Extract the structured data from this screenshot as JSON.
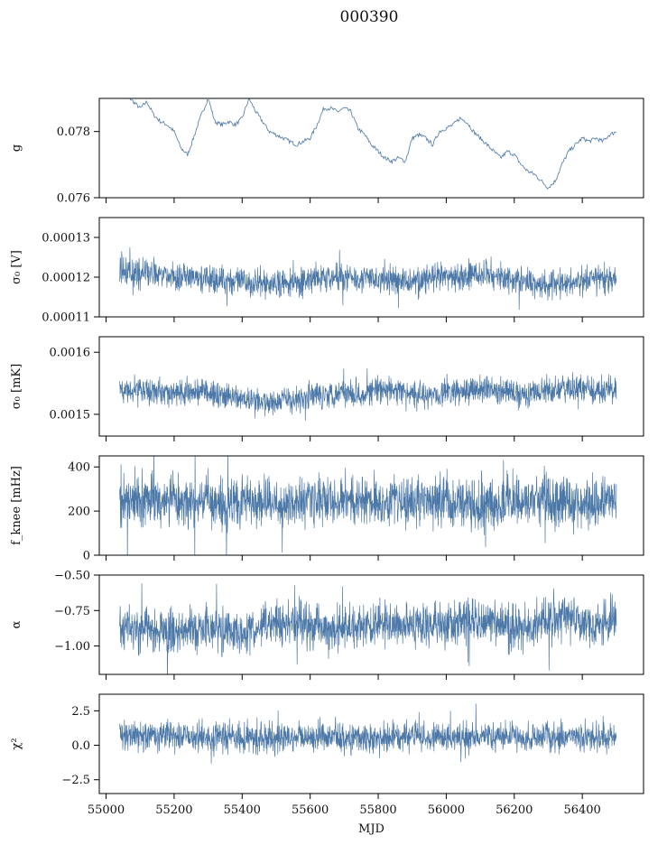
{
  "figure": {
    "title": "000390",
    "series_color": "#4c78a8"
  },
  "chart_data": [
    {
      "type": "line",
      "panel": "g",
      "ylabel": "g",
      "ylim": [
        0.076,
        0.079
      ],
      "yticks": [
        0.076,
        0.078
      ],
      "ytick_labels": [
        "0.076",
        "0.078"
      ],
      "x": [
        55040,
        55060,
        55080,
        55100,
        55120,
        55140,
        55160,
        55180,
        55200,
        55220,
        55240,
        55260,
        55280,
        55300,
        55320,
        55340,
        55360,
        55380,
        55400,
        55420,
        55440,
        55460,
        55480,
        55500,
        55520,
        55540,
        55560,
        55580,
        55600,
        55620,
        55640,
        55660,
        55680,
        55700,
        55720,
        55740,
        55760,
        55780,
        55800,
        55820,
        55840,
        55860,
        55880,
        55900,
        55920,
        55940,
        55960,
        55980,
        56000,
        56020,
        56040,
        56060,
        56080,
        56100,
        56120,
        56140,
        56160,
        56180,
        56200,
        56220,
        56240,
        56260,
        56280,
        56300,
        56320,
        56340,
        56360,
        56380,
        56400,
        56420,
        56440,
        56460,
        56480,
        56500
      ],
      "values": [
        0.0791,
        0.0791,
        0.0789,
        0.0787,
        0.0789,
        0.0785,
        0.0783,
        0.0782,
        0.078,
        0.0775,
        0.0773,
        0.0779,
        0.0785,
        0.079,
        0.0783,
        0.0782,
        0.0783,
        0.0782,
        0.0784,
        0.079,
        0.0786,
        0.0783,
        0.078,
        0.0779,
        0.0778,
        0.0777,
        0.0776,
        0.0777,
        0.0778,
        0.0782,
        0.0787,
        0.0787,
        0.0786,
        0.0787,
        0.0786,
        0.0781,
        0.0779,
        0.0776,
        0.0774,
        0.0772,
        0.0771,
        0.0772,
        0.0771,
        0.0778,
        0.0779,
        0.0778,
        0.0776,
        0.078,
        0.0781,
        0.0782,
        0.0784,
        0.0783,
        0.078,
        0.0778,
        0.0776,
        0.0774,
        0.0772,
        0.0774,
        0.0773,
        0.077,
        0.0768,
        0.0767,
        0.0765,
        0.0763,
        0.0765,
        0.077,
        0.0774,
        0.0776,
        0.0778,
        0.0777,
        0.0778,
        0.0777,
        0.0779,
        0.078
      ]
    },
    {
      "type": "line",
      "panel": "sigma0_v",
      "ylabel": "σ₀ [V]",
      "ylim": [
        0.00011,
        0.000135
      ],
      "yticks": [
        0.00011,
        0.00012,
        0.00013
      ],
      "ytick_labels": [
        "0.00011",
        "0.00012",
        "0.00013"
      ],
      "x": [
        55040,
        55100,
        55160,
        55220,
        55280,
        55340,
        55400,
        55460,
        55520,
        55580,
        55640,
        55700,
        55760,
        55820,
        55880,
        55940,
        56000,
        56060,
        56120,
        56180,
        56240,
        56300,
        56360,
        56420,
        56480,
        56500
      ],
      "values": [
        0.0001215,
        0.0001212,
        0.0001205,
        0.0001198,
        0.0001195,
        0.0001192,
        0.0001188,
        0.0001183,
        0.0001182,
        0.000119,
        0.0001198,
        0.0001202,
        0.0001198,
        0.0001192,
        0.000119,
        0.0001195,
        0.00012,
        0.0001203,
        0.0001205,
        0.00012,
        0.0001188,
        0.0001182,
        0.0001185,
        0.0001192,
        0.0001195,
        0.0001196
      ],
      "band": 4.5e-06
    },
    {
      "type": "line",
      "panel": "sigma0_mk",
      "ylabel": "σ₀ [mK]",
      "ylim": [
        0.001465,
        0.001625
      ],
      "yticks": [
        0.0015,
        0.0016
      ],
      "ytick_labels": [
        "0.0015",
        "0.0016"
      ],
      "x": [
        55040,
        55100,
        55160,
        55220,
        55280,
        55340,
        55400,
        55460,
        55520,
        55580,
        55640,
        55700,
        55760,
        55820,
        55880,
        55940,
        56000,
        56060,
        56120,
        56180,
        56240,
        56300,
        56360,
        56420,
        56480,
        56500
      ],
      "values": [
        0.00154,
        0.00154,
        0.001537,
        0.001532,
        0.001538,
        0.00153,
        0.001524,
        0.00152,
        0.001522,
        0.001528,
        0.001532,
        0.001538,
        0.001535,
        0.00154,
        0.001535,
        0.001532,
        0.001535,
        0.001537,
        0.001542,
        0.001535,
        0.001532,
        0.001538,
        0.001542,
        0.00154,
        0.001538,
        0.001537
      ],
      "band": 2.8e-05
    },
    {
      "type": "line",
      "panel": "fknee",
      "ylabel": "f_knee [mHz]",
      "ylim": [
        0,
        450
      ],
      "yticks": [
        0,
        200,
        400
      ],
      "ytick_labels": [
        "0",
        "200",
        "400"
      ],
      "x": [
        55040,
        55100,
        55160,
        55220,
        55280,
        55340,
        55400,
        55460,
        55520,
        55580,
        55640,
        55700,
        55760,
        55820,
        55880,
        55940,
        56000,
        56060,
        56120,
        56180,
        56240,
        56300,
        56360,
        56420,
        56480,
        56500
      ],
      "values": [
        250,
        245,
        250,
        240,
        245,
        235,
        245,
        240,
        235,
        250,
        240,
        245,
        250,
        240,
        245,
        250,
        245,
        250,
        240,
        245,
        240,
        250,
        245,
        240,
        250,
        248
      ],
      "band": 150
    },
    {
      "type": "line",
      "panel": "alpha",
      "ylabel": "α",
      "ylim": [
        -1.2,
        -0.5
      ],
      "yticks": [
        -1.0,
        -0.75,
        -0.5
      ],
      "ytick_labels": [
        "−1.00",
        "−0.75",
        "−0.50"
      ],
      "x": [
        55040,
        55100,
        55160,
        55220,
        55280,
        55340,
        55400,
        55460,
        55520,
        55580,
        55640,
        55700,
        55760,
        55820,
        55880,
        55940,
        56000,
        56060,
        56120,
        56180,
        56240,
        56300,
        56360,
        56420,
        56480,
        56500
      ],
      "values": [
        -0.85,
        -0.88,
        -0.9,
        -0.92,
        -0.86,
        -0.88,
        -0.9,
        -0.85,
        -0.86,
        -0.84,
        -0.88,
        -0.86,
        -0.85,
        -0.84,
        -0.86,
        -0.84,
        -0.86,
        -0.82,
        -0.84,
        -0.86,
        -0.85,
        -0.82,
        -0.8,
        -0.84,
        -0.82,
        -0.82
      ],
      "band": 0.2
    },
    {
      "type": "line",
      "panel": "chi2",
      "ylabel": "χ²",
      "xlabel": "MJD",
      "ylim": [
        -3.5,
        3.7
      ],
      "yticks": [
        -2.5,
        0.0,
        2.5
      ],
      "ytick_labels": [
        "−2.5",
        "0.0",
        "2.5"
      ],
      "xticks": [
        55000,
        55200,
        55400,
        55600,
        55800,
        56000,
        56200,
        56400
      ],
      "xtick_labels": [
        "55000",
        "55200",
        "55400",
        "55600",
        "55800",
        "56000",
        "56200",
        "56400"
      ],
      "x": [
        55040,
        55100,
        55160,
        55220,
        55280,
        55340,
        55400,
        55460,
        55520,
        55580,
        55640,
        55700,
        55760,
        55820,
        55880,
        55940,
        56000,
        56060,
        56120,
        56180,
        56240,
        56300,
        56360,
        56420,
        56480,
        56500
      ],
      "values": [
        0.6,
        0.7,
        0.6,
        0.5,
        0.6,
        0.7,
        0.6,
        0.5,
        0.6,
        0.7,
        0.6,
        0.6,
        0.5,
        0.6,
        0.7,
        0.6,
        0.6,
        0.5,
        0.6,
        0.7,
        0.6,
        0.5,
        0.6,
        0.7,
        0.6,
        0.6
      ],
      "band": 1.4
    }
  ]
}
